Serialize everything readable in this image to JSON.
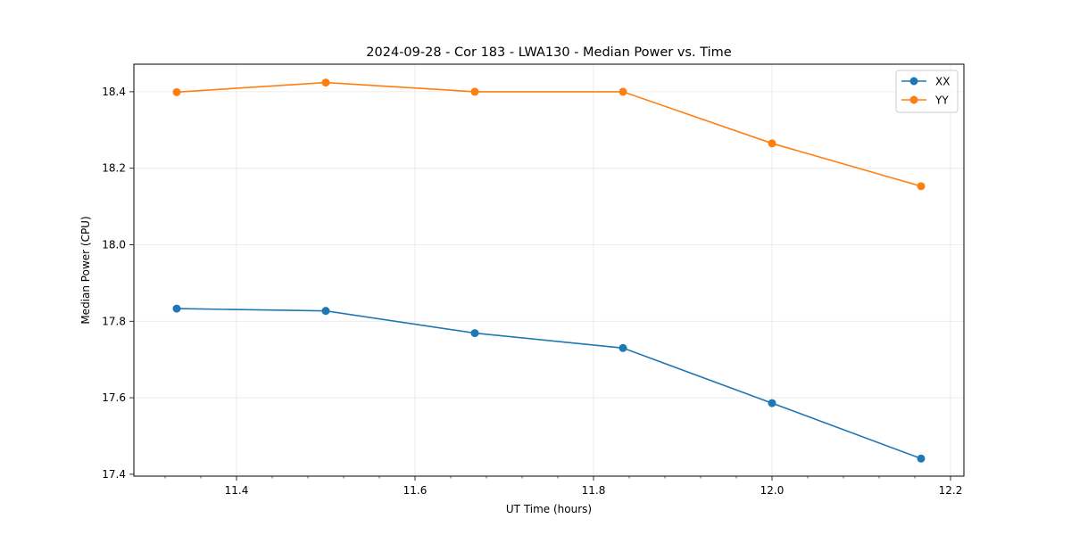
{
  "chart_data": {
    "type": "line",
    "title": "2024-09-28 - Cor 183 - LWA130 - Median Power vs. Time",
    "xlabel": "UT Time (hours)",
    "ylabel": "Median Power (CPU)",
    "xlim": [
      11.285,
      12.215
    ],
    "ylim": [
      17.395,
      18.472
    ],
    "xticks": [
      11.4,
      11.6,
      11.8,
      12.0,
      12.2
    ],
    "xtick_labels": [
      "11.4",
      "11.6",
      "11.8",
      "12.0",
      "12.2"
    ],
    "xminor_step": 0.04,
    "yticks": [
      17.4,
      17.6,
      17.8,
      18.0,
      18.2,
      18.4
    ],
    "ytick_labels": [
      "17.4",
      "17.6",
      "17.8",
      "18.0",
      "18.2",
      "18.4"
    ],
    "grid": true,
    "legend_position": "top-right",
    "x": [
      11.333,
      11.5,
      11.667,
      11.833,
      12.0,
      12.167
    ],
    "series": [
      {
        "name": "XX",
        "color": "#1f77b4",
        "values": [
          17.833,
          17.827,
          17.769,
          17.73,
          17.586,
          17.441
        ]
      },
      {
        "name": "YY",
        "color": "#ff7f0e",
        "values": [
          18.399,
          18.424,
          18.4,
          18.4,
          18.265,
          18.153
        ]
      }
    ]
  }
}
